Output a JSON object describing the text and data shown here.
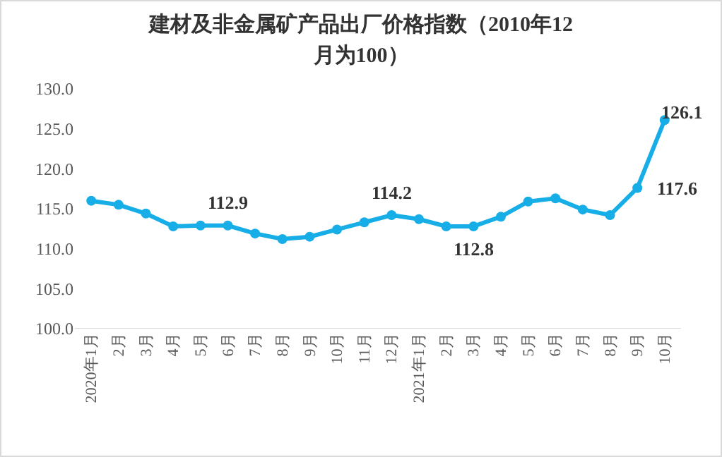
{
  "chart_data": {
    "type": "line",
    "title": "建材及非金属矿产品出厂价格指数（2010年12月为100）",
    "categories": [
      "2020年1月",
      "2月",
      "3月",
      "4月",
      "5月",
      "6月",
      "7月",
      "8月",
      "9月",
      "10月",
      "11月",
      "12月",
      "2021年1月",
      "2月",
      "3月",
      "4月",
      "5月",
      "6月",
      "7月",
      "8月",
      "9月",
      "10月"
    ],
    "series": [
      {
        "color": "#17aee8",
        "values": [
          116.0,
          115.5,
          114.4,
          112.8,
          112.9,
          112.9,
          111.9,
          111.2,
          111.5,
          112.4,
          113.3,
          114.2,
          113.7,
          112.8,
          112.8,
          114.0,
          115.9,
          116.3,
          114.9,
          114.2,
          117.6,
          126.1
        ],
        "value_labels": [
          null,
          null,
          null,
          null,
          null,
          "112.9",
          null,
          null,
          null,
          null,
          null,
          "114.2",
          null,
          "112.8",
          null,
          null,
          null,
          null,
          null,
          null,
          "117.6",
          "126.1"
        ]
      }
    ],
    "ylim": [
      100,
      130
    ],
    "yticks": [
      {
        "value": 100,
        "label": "100.0"
      },
      {
        "value": 105,
        "label": "105.0"
      },
      {
        "value": 110,
        "label": "110.0"
      },
      {
        "value": 115,
        "label": "115.0"
      },
      {
        "value": 120,
        "label": "120.0"
      },
      {
        "value": 125,
        "label": "125.0"
      },
      {
        "value": 130,
        "label": "130.0"
      }
    ],
    "grid": false,
    "marker": "circle",
    "line_style": "solid"
  }
}
